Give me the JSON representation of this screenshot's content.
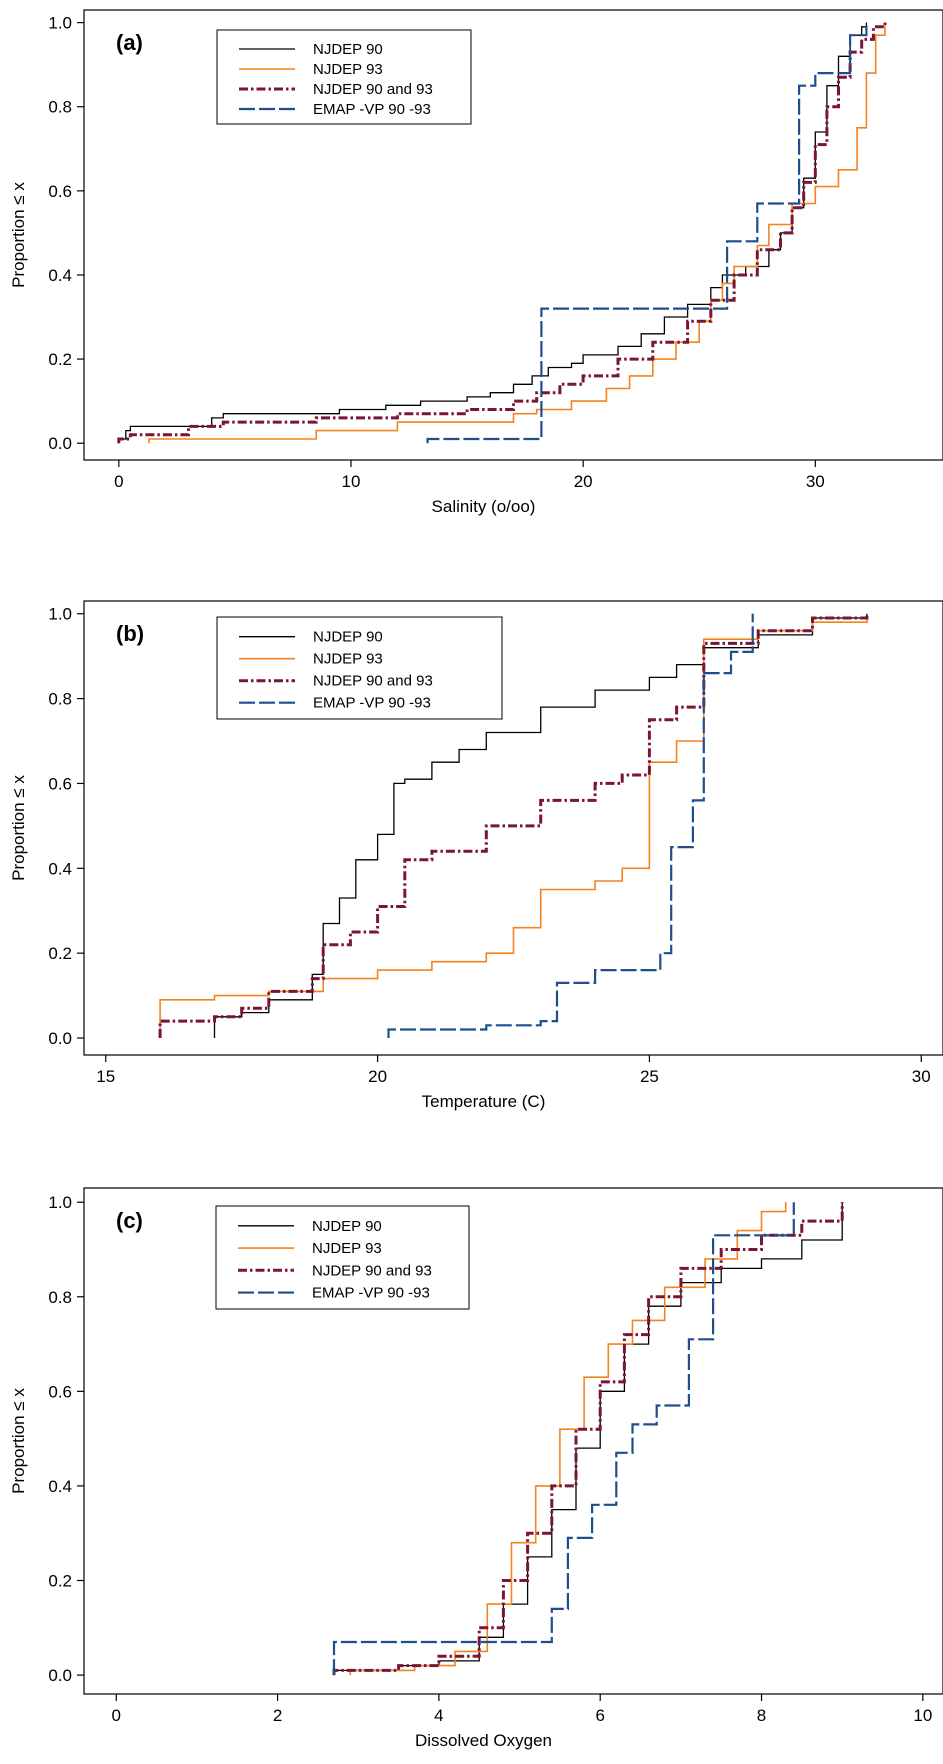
{
  "chart_data": [
    {
      "type": "line",
      "step": true,
      "panel_label": "(a)",
      "xlabel": "Salinity (o/oo)",
      "ylabel": "Proportion ≤ x",
      "xlim": [
        -1.5,
        35.5
      ],
      "ylim": [
        -0.04,
        1.03
      ],
      "xticks": [
        0,
        10,
        20,
        30
      ],
      "yticks": [
        "0.0",
        "0.2",
        "0.4",
        "0.6",
        "0.8",
        "1.0"
      ],
      "legend_position": "top-left",
      "series": [
        {
          "name": "NJDEP 90",
          "color": "#000000",
          "x": [
            0.0,
            0.3,
            0.5,
            4.0,
            4.5,
            9.5,
            11.5,
            13.0,
            15.0,
            16.0,
            17.0,
            17.8,
            18.5,
            19.5,
            20.0,
            21.5,
            22.5,
            23.5,
            24.5,
            25.5,
            26.0,
            27.0,
            28.0,
            28.5,
            29.0,
            29.5,
            30.0,
            30.5,
            31.0,
            31.5,
            32.0,
            32.2
          ],
          "y": [
            0.01,
            0.03,
            0.04,
            0.06,
            0.07,
            0.08,
            0.09,
            0.1,
            0.11,
            0.12,
            0.14,
            0.16,
            0.18,
            0.19,
            0.21,
            0.23,
            0.26,
            0.3,
            0.33,
            0.37,
            0.4,
            0.42,
            0.46,
            0.5,
            0.56,
            0.63,
            0.74,
            0.85,
            0.92,
            0.97,
            0.99,
            1.0
          ]
        },
        {
          "name": "NJDEP 93",
          "color": "#f4821f",
          "x": [
            1.3,
            8.5,
            12.0,
            17.0,
            18.0,
            19.5,
            21.0,
            22.0,
            23.0,
            24.0,
            25.0,
            25.5,
            26.0,
            26.5,
            27.5,
            28.0,
            29.0,
            30.0,
            31.0,
            31.8,
            32.2,
            32.6,
            33.0
          ],
          "y": [
            0.01,
            0.03,
            0.05,
            0.07,
            0.08,
            0.1,
            0.13,
            0.16,
            0.2,
            0.24,
            0.29,
            0.34,
            0.38,
            0.42,
            0.47,
            0.52,
            0.57,
            0.61,
            0.65,
            0.75,
            0.88,
            0.97,
            1.0
          ]
        },
        {
          "name": "NJDEP 90 and 93",
          "color": "#7b1535",
          "x": [
            0.0,
            0.5,
            3.0,
            4.5,
            8.5,
            12.0,
            15.0,
            17.0,
            18.0,
            19.0,
            20.0,
            21.5,
            23.0,
            24.5,
            25.5,
            26.5,
            27.5,
            28.5,
            29.0,
            29.5,
            30.0,
            30.5,
            31.0,
            31.5,
            32.0,
            32.5,
            33.0
          ],
          "y": [
            0.01,
            0.02,
            0.04,
            0.05,
            0.06,
            0.07,
            0.08,
            0.1,
            0.12,
            0.14,
            0.16,
            0.2,
            0.24,
            0.29,
            0.34,
            0.4,
            0.46,
            0.5,
            0.56,
            0.62,
            0.71,
            0.8,
            0.87,
            0.93,
            0.96,
            0.99,
            1.0
          ]
        },
        {
          "name": "EMAP -VP 90 -93",
          "color": "#1f4e8c",
          "x": [
            13.3,
            18.2,
            26.2,
            27.5,
            29.3,
            30.0,
            31.5,
            32.2
          ],
          "y": [
            0.01,
            0.32,
            0.48,
            0.57,
            0.85,
            0.88,
            0.97,
            1.0
          ]
        }
      ]
    },
    {
      "type": "line",
      "step": true,
      "panel_label": "(b)",
      "xlabel": "Temperature (C)",
      "ylabel": "Proportion ≤ x",
      "xlim": [
        14.6,
        30.4
      ],
      "ylim": [
        -0.04,
        1.03
      ],
      "xticks": [
        15,
        20,
        25,
        30
      ],
      "yticks": [
        "0.0",
        "0.2",
        "0.4",
        "0.6",
        "0.8",
        "1.0"
      ],
      "legend_position": "top-left",
      "series": [
        {
          "name": "NJDEP 90",
          "color": "#000000",
          "x": [
            17.0,
            17.5,
            18.0,
            18.8,
            19.0,
            19.3,
            19.6,
            20.0,
            20.3,
            20.5,
            21.0,
            21.5,
            22.0,
            23.0,
            24.0,
            25.0,
            25.5,
            26.0,
            27.0,
            28.0,
            29.0
          ],
          "y": [
            0.05,
            0.06,
            0.09,
            0.15,
            0.27,
            0.33,
            0.42,
            0.48,
            0.6,
            0.61,
            0.65,
            0.68,
            0.72,
            0.78,
            0.82,
            0.85,
            0.88,
            0.92,
            0.95,
            0.99,
            1.0
          ]
        },
        {
          "name": "NJDEP 93",
          "color": "#f4821f",
          "x": [
            16.0,
            17.0,
            18.0,
            19.0,
            20.0,
            21.0,
            22.0,
            22.5,
            23.0,
            24.0,
            24.5,
            25.0,
            25.5,
            26.0,
            27.0,
            28.0,
            29.0
          ],
          "y": [
            0.09,
            0.1,
            0.11,
            0.14,
            0.16,
            0.18,
            0.2,
            0.26,
            0.35,
            0.37,
            0.4,
            0.65,
            0.7,
            0.94,
            0.96,
            0.98,
            0.99
          ]
        },
        {
          "name": "NJDEP 90 and 93",
          "color": "#7b1535",
          "x": [
            16.0,
            17.0,
            17.5,
            18.0,
            18.8,
            19.0,
            19.5,
            20.0,
            20.5,
            21.0,
            22.0,
            23.0,
            24.0,
            24.5,
            25.0,
            25.5,
            26.0,
            27.0,
            28.0,
            29.0
          ],
          "y": [
            0.04,
            0.05,
            0.07,
            0.11,
            0.14,
            0.22,
            0.25,
            0.31,
            0.42,
            0.44,
            0.5,
            0.56,
            0.6,
            0.62,
            0.75,
            0.78,
            0.93,
            0.96,
            0.99,
            1.0
          ]
        },
        {
          "name": "EMAP -VP 90 -93",
          "color": "#1f4e8c",
          "x": [
            20.2,
            22.0,
            23.0,
            23.3,
            24.0,
            25.2,
            25.4,
            25.8,
            26.0,
            26.5,
            26.9
          ],
          "y": [
            0.02,
            0.03,
            0.04,
            0.13,
            0.16,
            0.2,
            0.45,
            0.56,
            0.86,
            0.91,
            1.0
          ]
        }
      ]
    },
    {
      "type": "line",
      "step": true,
      "panel_label": "(c)",
      "xlabel": "Dissolved Oxygen",
      "ylabel": "Proportion ≤ x",
      "xlim": [
        -0.4,
        10.25
      ],
      "ylim": [
        -0.04,
        1.03
      ],
      "xticks": [
        0,
        2,
        4,
        6,
        8,
        10
      ],
      "yticks": [
        "0.0",
        "0.2",
        "0.4",
        "0.6",
        "0.8",
        "1.0"
      ],
      "legend_position": "top-left",
      "series": [
        {
          "name": "NJDEP 90",
          "color": "#000000",
          "x": [
            2.7,
            3.5,
            4.0,
            4.5,
            4.8,
            5.1,
            5.4,
            5.7,
            6.0,
            6.3,
            6.6,
            7.0,
            7.5,
            8.0,
            8.5,
            9.0
          ],
          "y": [
            0.01,
            0.02,
            0.03,
            0.08,
            0.15,
            0.25,
            0.35,
            0.48,
            0.6,
            0.7,
            0.78,
            0.83,
            0.86,
            0.88,
            0.92,
            1.0
          ]
        },
        {
          "name": "NJDEP 93",
          "color": "#f4821f",
          "x": [
            2.9,
            3.7,
            4.2,
            4.6,
            4.9,
            5.2,
            5.5,
            5.8,
            6.1,
            6.4,
            6.8,
            7.3,
            7.7,
            8.0,
            8.3
          ],
          "y": [
            0.01,
            0.02,
            0.05,
            0.15,
            0.28,
            0.4,
            0.52,
            0.63,
            0.7,
            0.75,
            0.82,
            0.88,
            0.94,
            0.98,
            1.0
          ]
        },
        {
          "name": "NJDEP 90 and 93",
          "color": "#7b1535",
          "x": [
            2.7,
            3.5,
            4.0,
            4.5,
            4.8,
            5.1,
            5.4,
            5.7,
            6.0,
            6.3,
            6.6,
            7.0,
            7.5,
            8.0,
            8.5,
            9.0
          ],
          "y": [
            0.01,
            0.02,
            0.04,
            0.1,
            0.2,
            0.3,
            0.4,
            0.52,
            0.62,
            0.72,
            0.8,
            0.86,
            0.9,
            0.93,
            0.96,
            1.0
          ]
        },
        {
          "name": "EMAP -VP 90 -93",
          "color": "#1f4e8c",
          "x": [
            2.7,
            5.4,
            5.6,
            5.9,
            6.2,
            6.4,
            6.7,
            7.1,
            7.4,
            8.0,
            8.4
          ],
          "y": [
            0.07,
            0.14,
            0.29,
            0.36,
            0.47,
            0.53,
            0.57,
            0.71,
            0.93,
            0.93,
            1.0
          ]
        }
      ]
    }
  ]
}
